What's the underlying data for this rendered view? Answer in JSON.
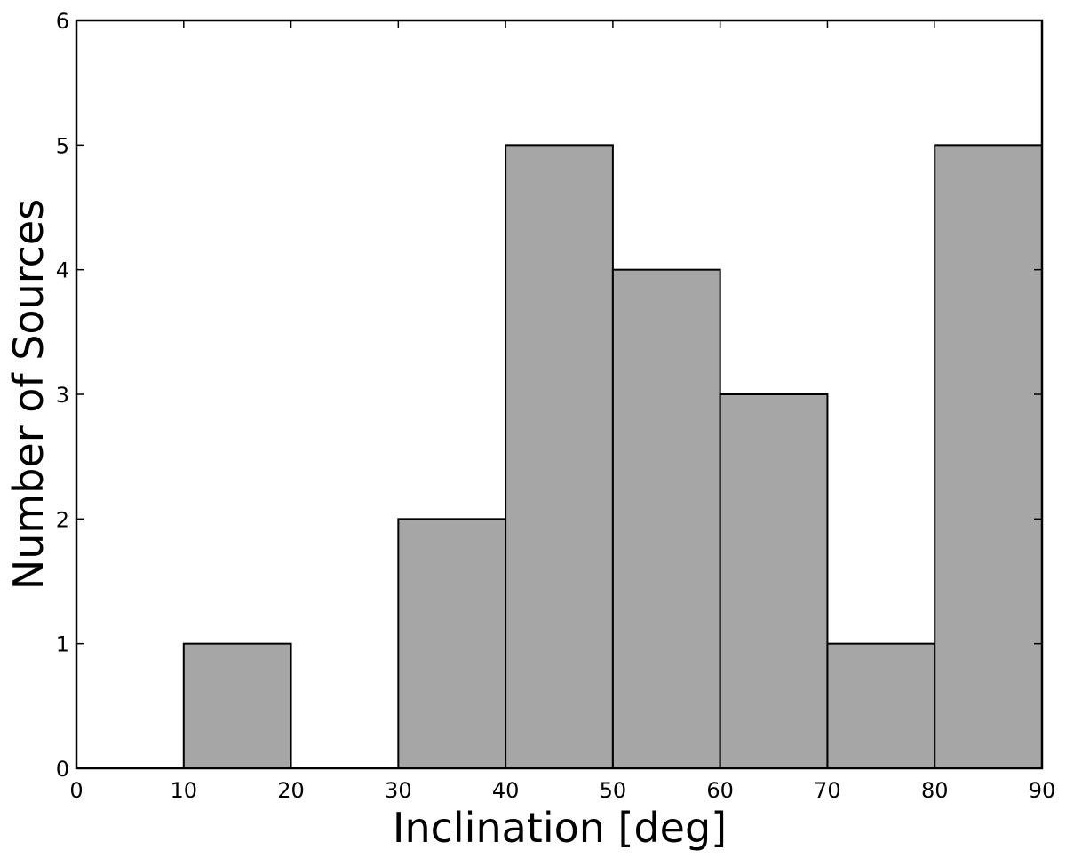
{
  "chart_data": {
    "type": "bar",
    "subtype": "histogram",
    "title": "",
    "xlabel": "Inclination [deg]",
    "ylabel": "Number of Sources",
    "bin_edges": [
      0,
      10,
      20,
      30,
      40,
      50,
      60,
      70,
      80,
      90
    ],
    "values": [
      0,
      1,
      0,
      2,
      5,
      4,
      3,
      1,
      5
    ],
    "xlim": [
      0,
      90
    ],
    "ylim": [
      0,
      6
    ],
    "xticks": [
      0,
      10,
      20,
      30,
      40,
      50,
      60,
      70,
      80,
      90
    ],
    "yticks": [
      0,
      1,
      2,
      3,
      4,
      5,
      6
    ],
    "grid": false,
    "bar_color": "#a6a6a6",
    "edge_color": "#000000"
  }
}
